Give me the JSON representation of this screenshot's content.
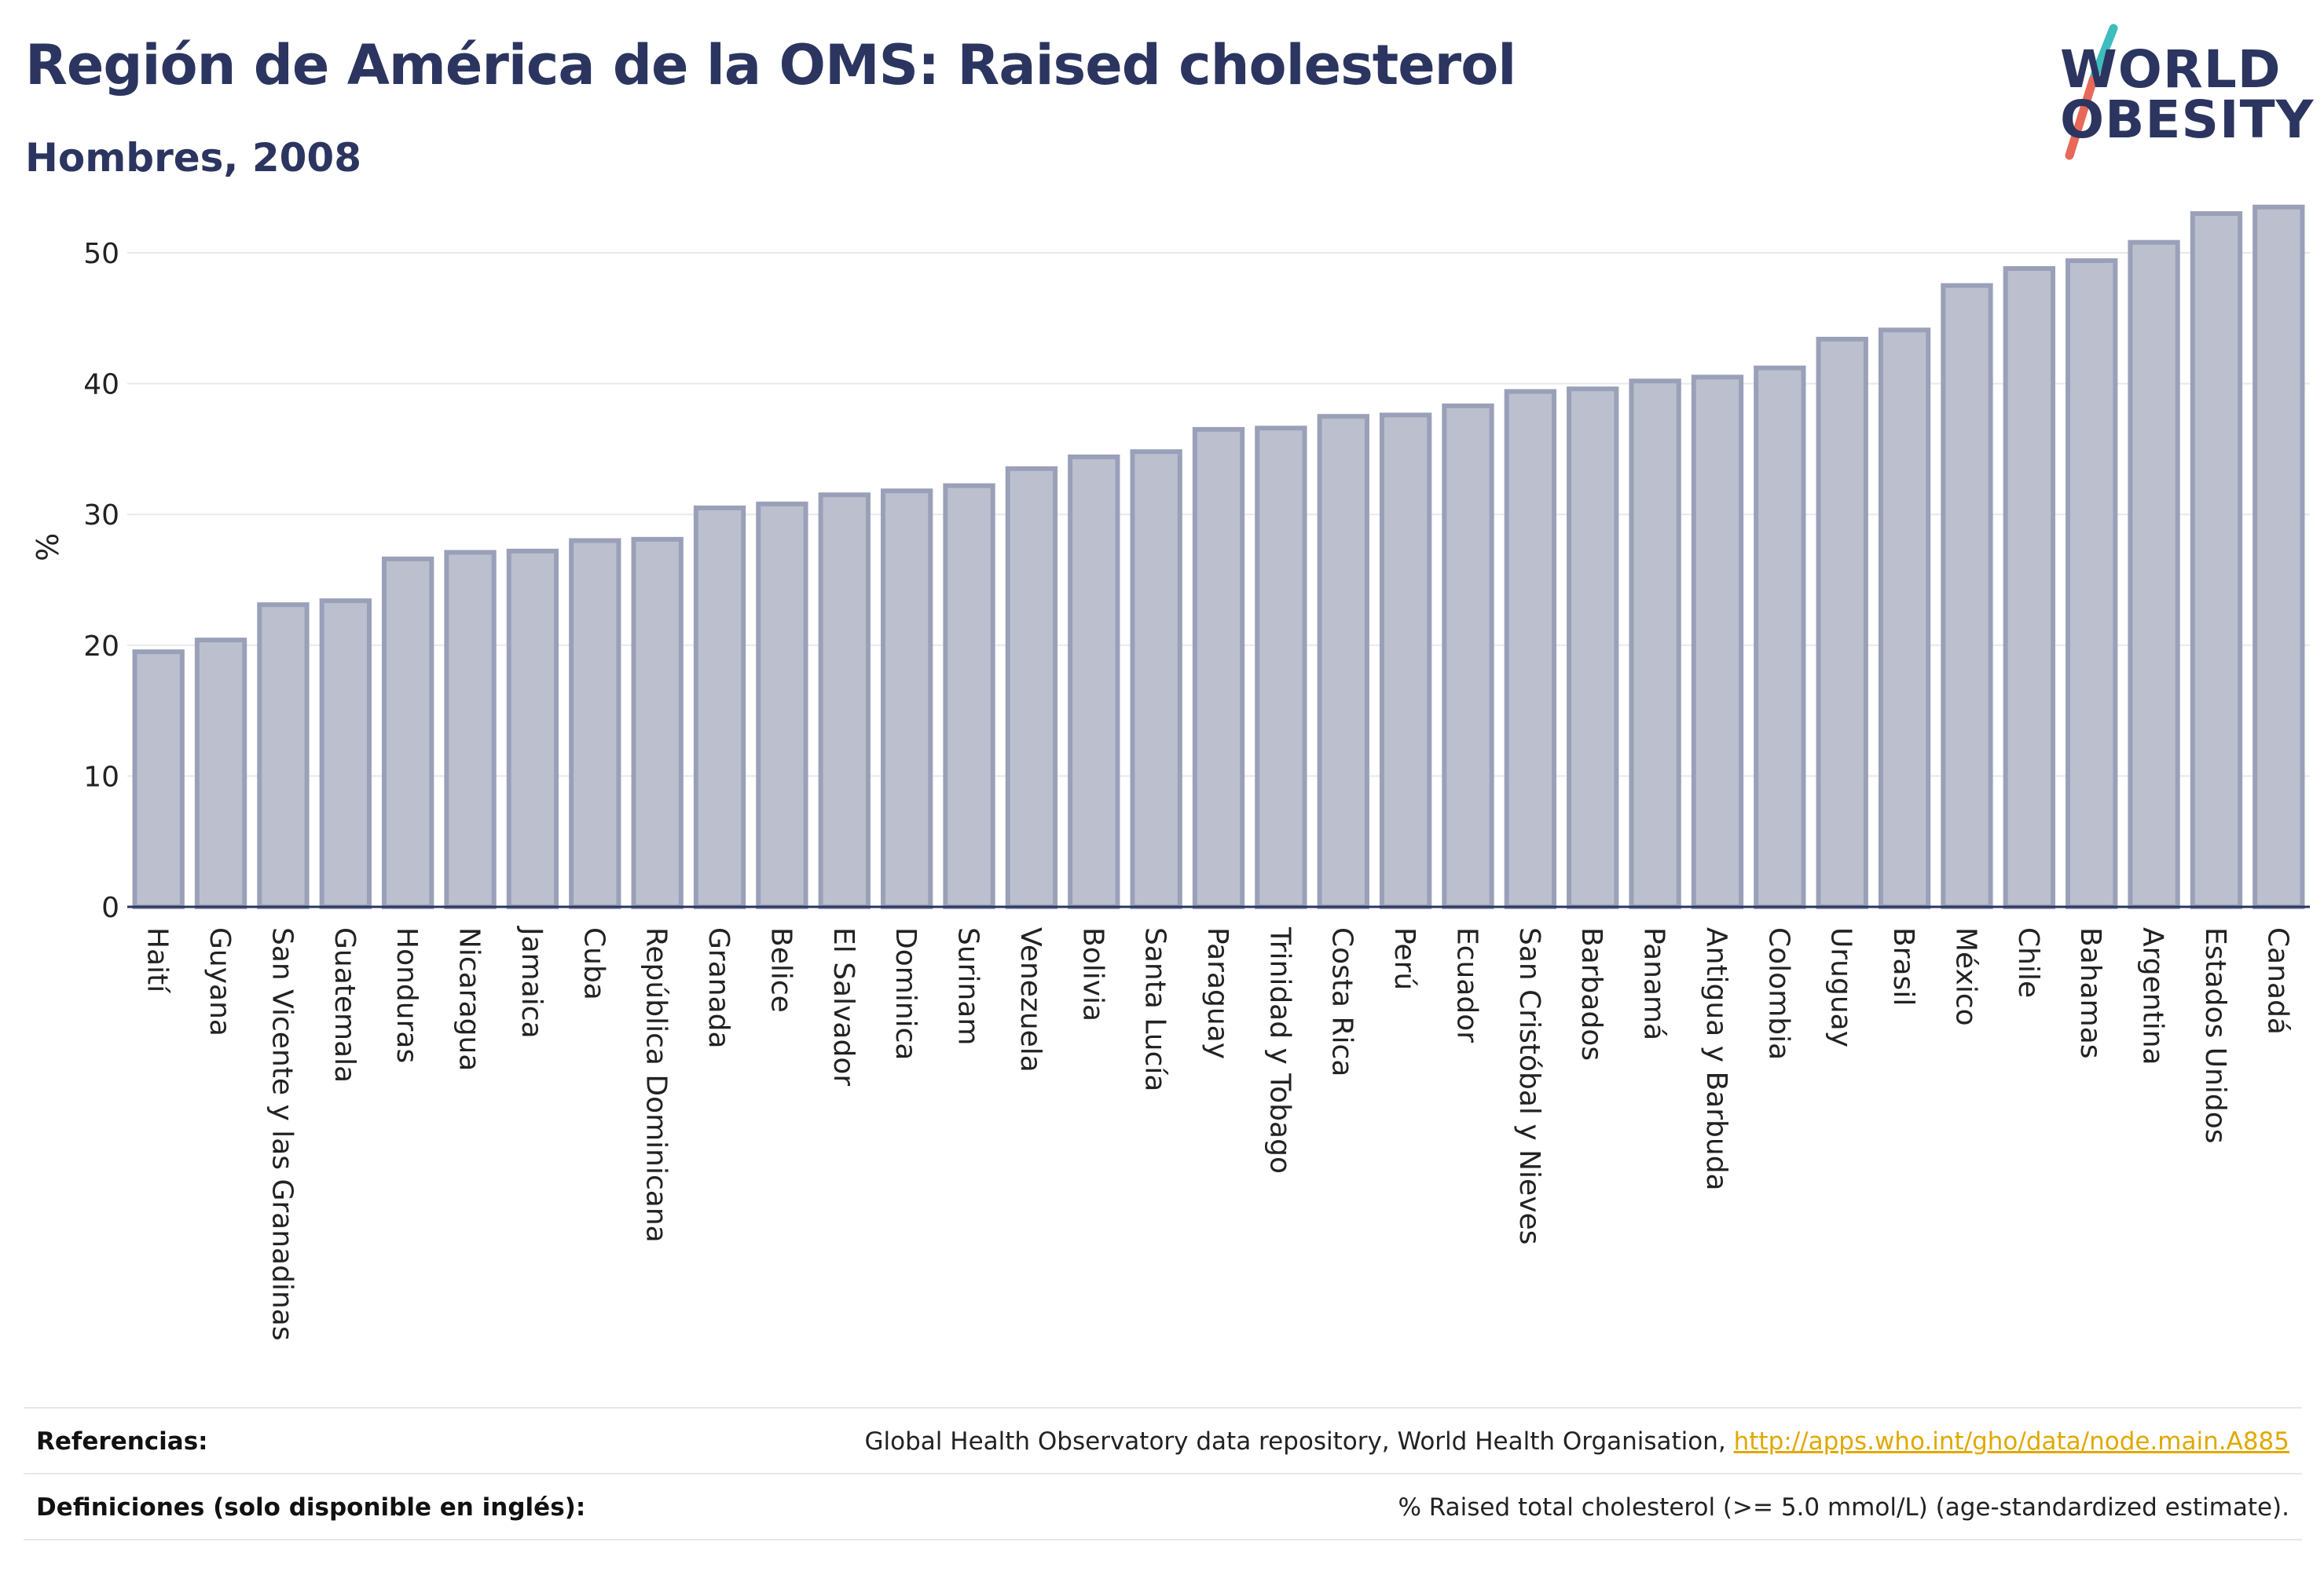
{
  "header": {
    "title": "Región de América de la OMS: Raised cholesterol",
    "subtitle": "Hombres, 2008"
  },
  "logo": {
    "line1": "WORLD",
    "line2": "OBESITY",
    "colors": {
      "text": "#2b3560",
      "slash_top": "#3dbdbd",
      "slash_bottom": "#e8685a"
    }
  },
  "chart_data": {
    "type": "bar",
    "title": "",
    "xlabel": "",
    "ylabel": "%",
    "ylim": [
      0,
      55
    ],
    "yticks": [
      0,
      10,
      20,
      30,
      40,
      50
    ],
    "grid": true,
    "bar_fill": "#bcc0ce",
    "bar_stroke": "#9aa0b8",
    "categories": [
      "Haití",
      "Guyana",
      "San Vicente y las Granadinas",
      "Guatemala",
      "Honduras",
      "Nicaragua",
      "Jamaica",
      "Cuba",
      "República Dominicana",
      "Granada",
      "Belice",
      "El Salvador",
      "Dominica",
      "Surinam",
      "Venezuela",
      "Bolivia",
      "Santa Lucía",
      "Paraguay",
      "Trinidad y Tobago",
      "Costa Rica",
      "Perú",
      "Ecuador",
      "San Cristóbal y Nieves",
      "Barbados",
      "Panamá",
      "Antigua y Barbuda",
      "Colombia",
      "Uruguay",
      "Brasil",
      "México",
      "Chile",
      "Bahamas",
      "Argentina",
      "Estados Unidos",
      "Canadá"
    ],
    "values": [
      19.5,
      20.4,
      23.1,
      23.4,
      26.6,
      27.1,
      27.2,
      28.0,
      28.1,
      30.5,
      30.8,
      31.5,
      31.8,
      32.2,
      33.5,
      34.4,
      34.8,
      36.5,
      36.6,
      37.5,
      37.6,
      38.3,
      39.4,
      39.6,
      40.2,
      40.5,
      41.2,
      43.4,
      44.1,
      47.5,
      48.8,
      49.4,
      50.8,
      53.0,
      53.5
    ]
  },
  "footer": {
    "references_label": "Referencias:",
    "references_text": "Global Health Observatory data repository, World Health Organisation, ",
    "references_link": "http://apps.who.int/gho/data/node.main.A885",
    "definitions_label": "Definiciones (solo disponible en inglés):",
    "definitions_text": "% Raised total cholesterol (>= 5.0 mmol/L) (age-standardized estimate)."
  }
}
